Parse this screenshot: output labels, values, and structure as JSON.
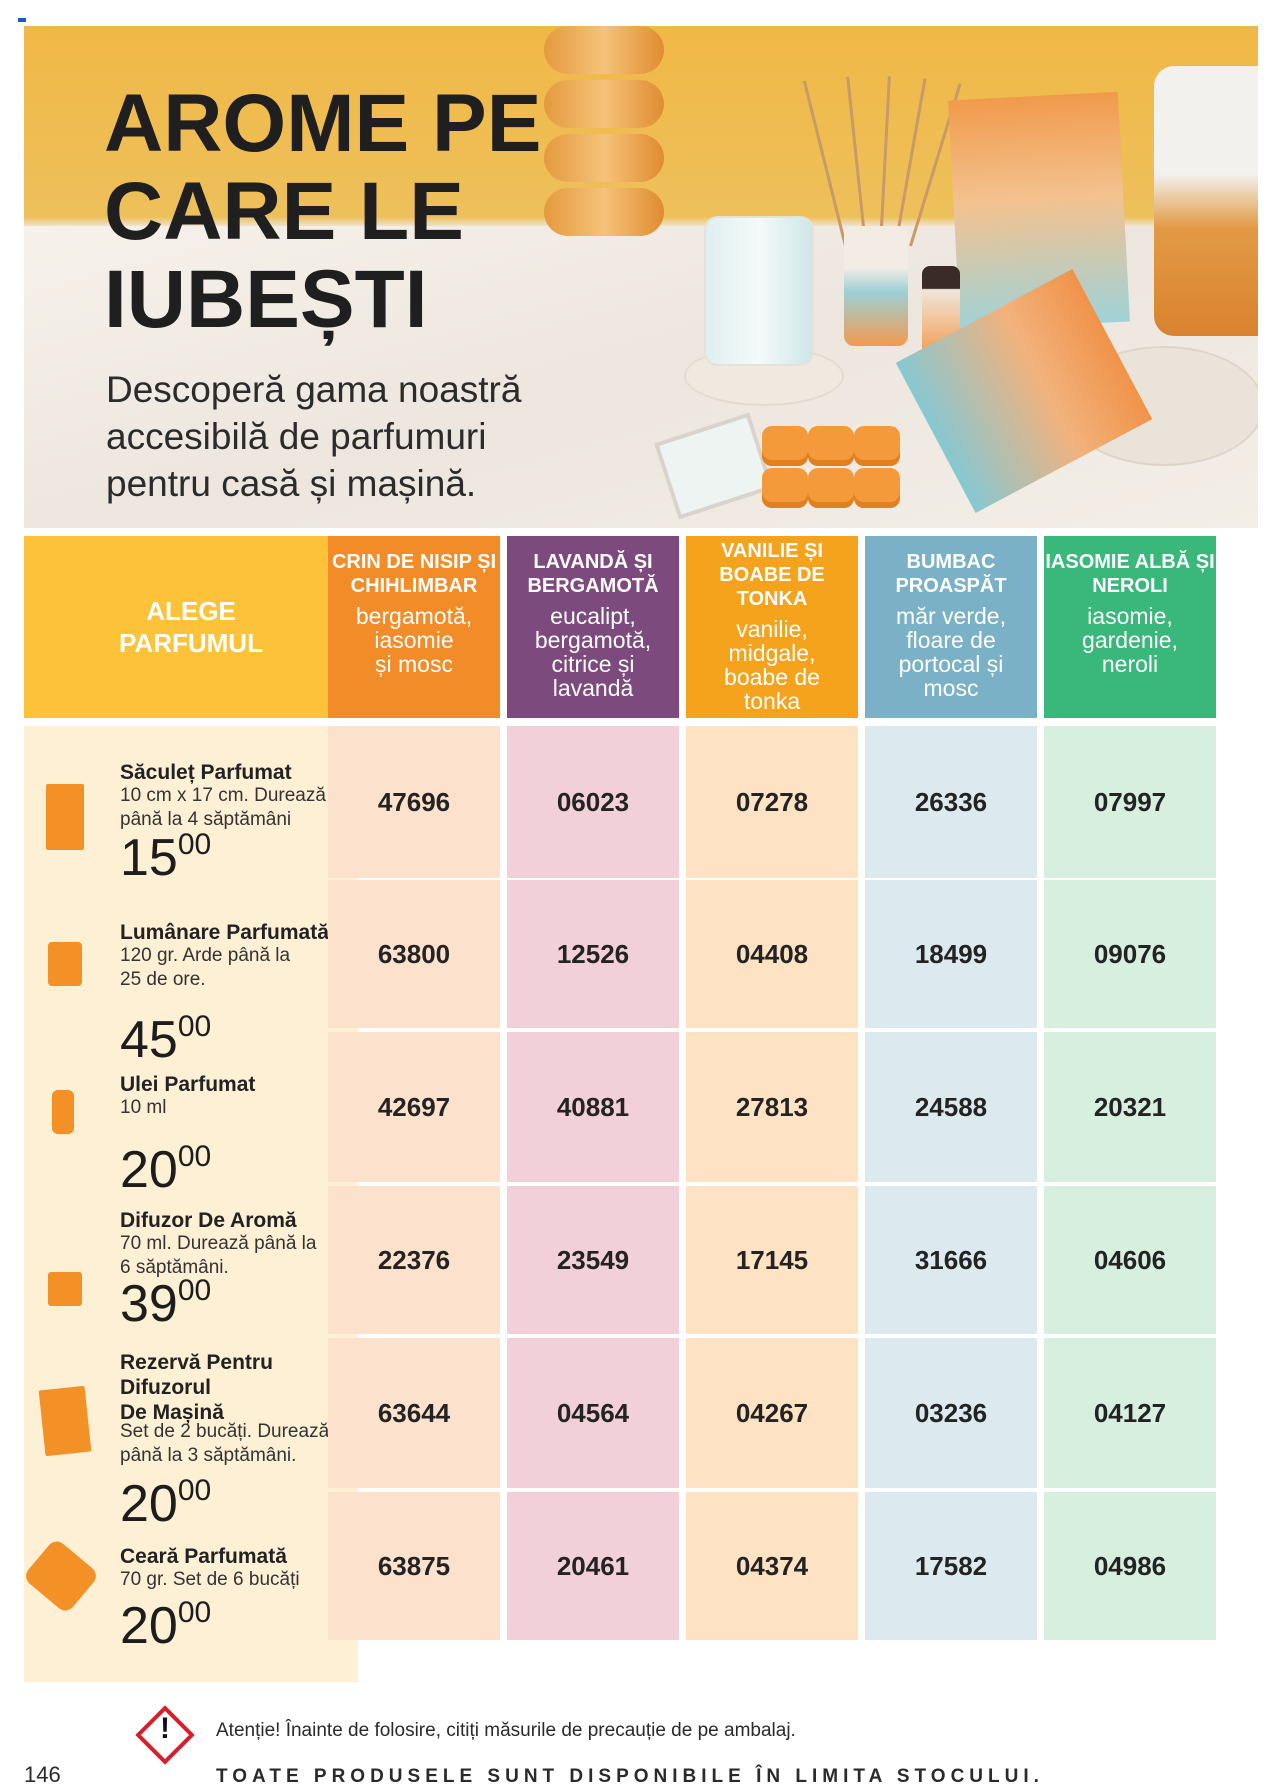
{
  "hero": {
    "title_lines": [
      "AROME PE",
      "CARE LE",
      "IUBEȘTI"
    ],
    "subtitle_lines": [
      "Descoperă gama noastră",
      "accesibilă de parfumuri",
      "pentru casă și mașină."
    ]
  },
  "table": {
    "header_label_lines": [
      "ALEGE",
      "PARFUMUL"
    ],
    "columns": [
      {
        "name": "CRIN DE NISIP ȘI CHIHLIMBAR",
        "notes": "bergamotă,\niasomie\nși mosc",
        "header_color": "#f28c28",
        "cell_color": "#fce1cd"
      },
      {
        "name": "LAVANDĂ ȘI BERGAMOTĂ",
        "notes": "eucalipt,\nbergamotă,\ncitrice și\nlavandă",
        "header_color": "#7d4a7e",
        "cell_color": "#f1d0d9"
      },
      {
        "name": "VANILIE ȘI BOABE DE TONKA",
        "notes": "vanilie,\nmidgale,\nboabe de\ntonka",
        "header_color": "#f5a31c",
        "cell_color": "#fde2c3"
      },
      {
        "name": "BUMBAC PROASPĂT",
        "notes": "măr verde,\nfloare de\nportocal și\nmosc",
        "header_color": "#7ab1c6",
        "cell_color": "#dceaf0"
      },
      {
        "name": "IASOMIE ALBĂ ȘI NEROLI",
        "notes": "iasomie,\ngardenie,\nneroli",
        "header_color": "#3ab77a",
        "cell_color": "#d7efdf"
      }
    ],
    "products": [
      {
        "name": "Săculeț Parfumat",
        "desc": "10 cm x 17 cm. Durează\npână la 4 săptămâni",
        "price_int": "15",
        "price_dec": "00",
        "icon": "sachet-icon",
        "codes": [
          "47696",
          "06023",
          "07278",
          "26336",
          "07997"
        ]
      },
      {
        "name": "Lumânare Parfumată",
        "desc": "120 gr. Arde până la\n25 de ore.",
        "price_int": "45",
        "price_dec": "00",
        "icon": "candle-icon",
        "codes": [
          "63800",
          "12526",
          "04408",
          "18499",
          "09076"
        ]
      },
      {
        "name": "Ulei Parfumat",
        "desc": "10 ml",
        "price_int": "20",
        "price_dec": "00",
        "icon": "oil-bottle-icon",
        "codes": [
          "42697",
          "40881",
          "27813",
          "24588",
          "20321"
        ]
      },
      {
        "name": "Difuzor De Aromă",
        "desc": "70 ml. Durează până la\n6 săptămâni.",
        "price_int": "39",
        "price_dec": "00",
        "icon": "diffuser-icon",
        "codes": [
          "22376",
          "23549",
          "17145",
          "31666",
          "04606"
        ]
      },
      {
        "name": "Rezervă Pentru\nDifuzorul\nDe Mașină",
        "desc": "Set de 2 bucăți. Durează\npână la 3 săptămâni.",
        "price_int": "20",
        "price_dec": "00",
        "icon": "car-refill-icon",
        "codes": [
          "63644",
          "04564",
          "04267",
          "03236",
          "04127"
        ]
      },
      {
        "name": "Ceară Parfumată",
        "desc": "70 gr. Set de 6 bucăți",
        "price_int": "20",
        "price_dec": "00",
        "icon": "wax-melt-icon",
        "codes": [
          "63875",
          "20461",
          "04374",
          "17582",
          "04986"
        ]
      }
    ]
  },
  "footer": {
    "warning_symbol": "!",
    "warning_text": "Atenție! Înainte de folosire, citiți măsurile de precauție de pe ambalaj.",
    "page_number": "146",
    "stock_notice": "TOATE PRODUSELE SUNT DISPONIBILE ÎN LIMITA STOCULUI."
  }
}
